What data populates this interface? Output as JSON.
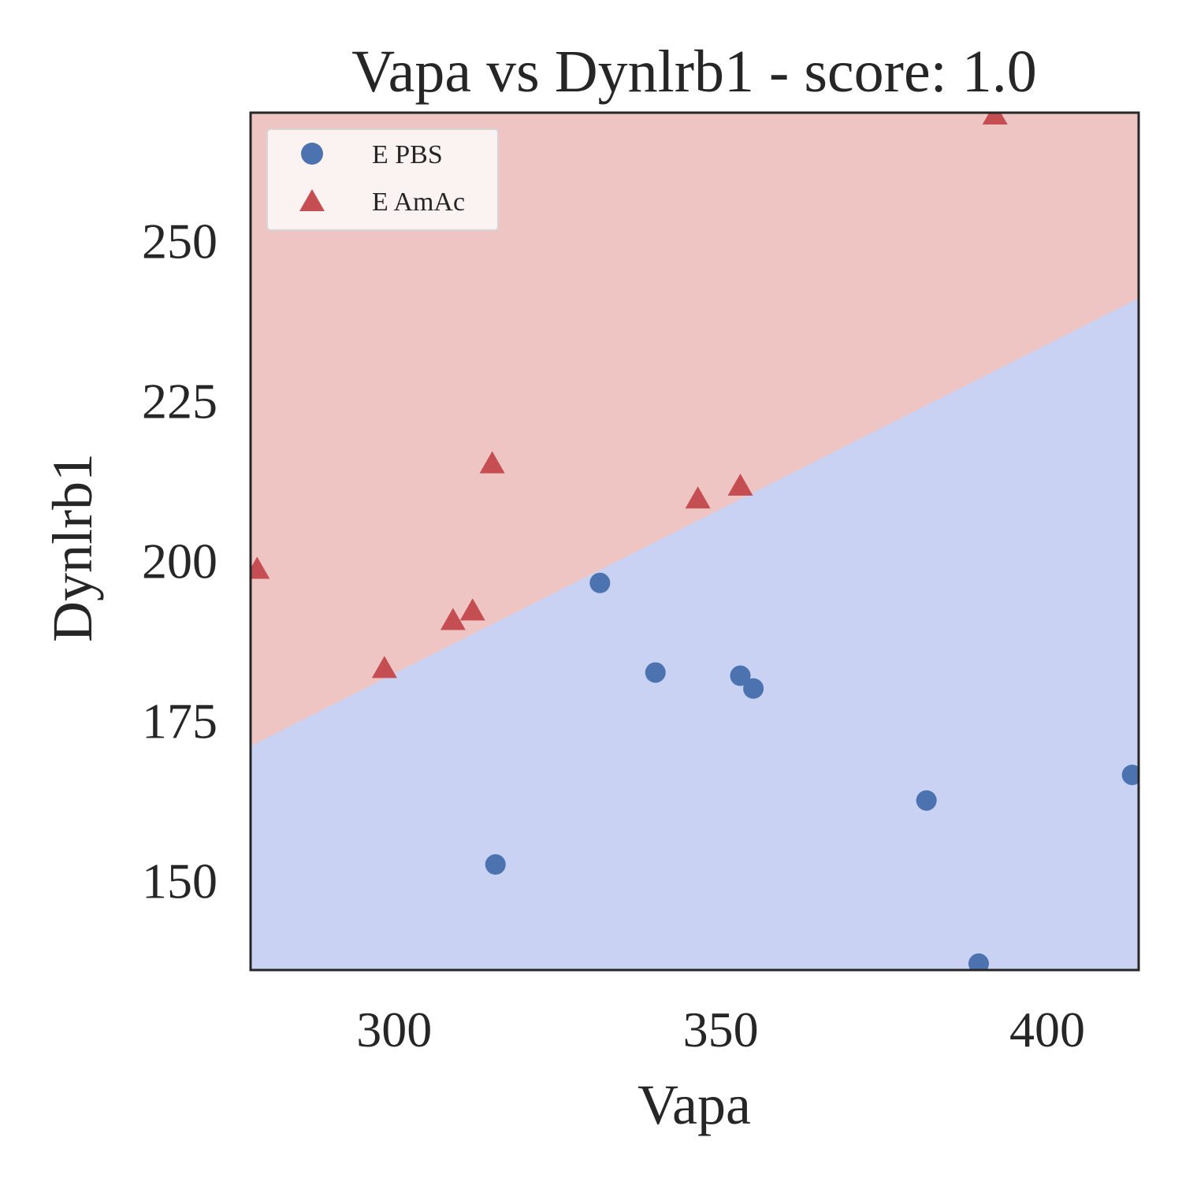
{
  "chart_data": {
    "type": "scatter",
    "title": "Vapa vs Dynlrb1 - score: 1.0",
    "xlabel": "Vapa",
    "ylabel": "Dynlrb1",
    "xlim": [
      278,
      414
    ],
    "ylim": [
      136,
      270
    ],
    "xticks": [
      300,
      350,
      400
    ],
    "yticks": [
      150,
      175,
      200,
      225,
      250
    ],
    "grid": false,
    "legend_position": "top-left",
    "decision_boundary": {
      "x": [
        278,
        414
      ],
      "y": [
        171,
        241
      ],
      "above_color": "#eec5c3",
      "below_color": "#c9d2f2"
    },
    "series": [
      {
        "name": "E PBS",
        "marker": "circle",
        "color": "#4c72b0",
        "points": [
          [
            331.5,
            196.5
          ],
          [
            340,
            182.5
          ],
          [
            353,
            182
          ],
          [
            355,
            180
          ],
          [
            315.5,
            152.5
          ],
          [
            381.5,
            162.5
          ],
          [
            389.5,
            137
          ],
          [
            413,
            166.5
          ]
        ]
      },
      {
        "name": "E AmAc",
        "marker": "triangle",
        "color": "#c44e52",
        "points": [
          [
            279,
            198.5
          ],
          [
            298.5,
            183
          ],
          [
            309,
            190.5
          ],
          [
            312,
            192
          ],
          [
            315,
            215
          ],
          [
            346.5,
            209.5
          ],
          [
            353,
            211.5
          ],
          [
            392,
            269.5
          ]
        ]
      }
    ]
  }
}
